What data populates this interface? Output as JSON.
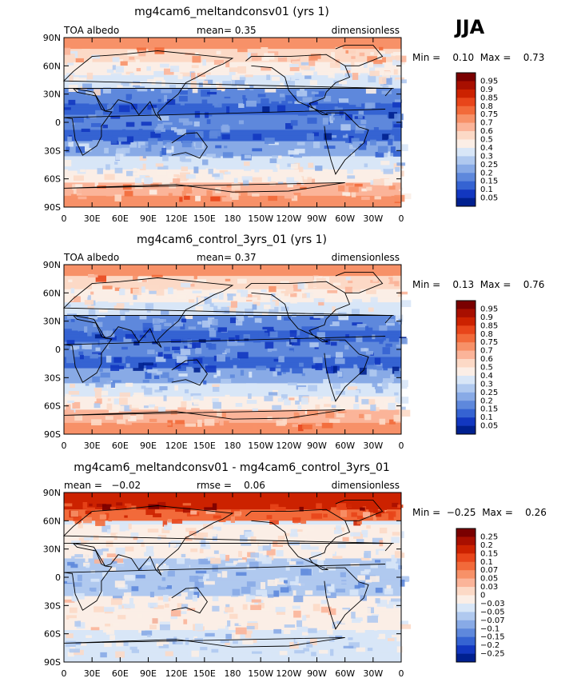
{
  "season": "JJA",
  "chart_data": [
    {
      "type": "heatmap",
      "title": "mg4cam6_meltandconsv01 (yrs 1)",
      "left_label": "TOA albedo",
      "center_label": "mean=    0.35",
      "units": "dimensionless",
      "min_max": "Min =    0.10  Max =    0.73",
      "min": 0.1,
      "max": 0.73,
      "mean": 0.35,
      "lat_ticks": [
        "90N",
        "60N",
        "30N",
        "0",
        "30S",
        "60S",
        "90S"
      ],
      "lon_ticks": [
        "0",
        "30E",
        "60E",
        "90E",
        "120E",
        "150E",
        "180",
        "150W",
        "120W",
        "90W",
        "60W",
        "30W",
        "0"
      ],
      "colorbar_labels": [
        "0.95",
        "0.9",
        "0.85",
        "0.8",
        "0.75",
        "0.7",
        "0.6",
        "0.5",
        "0.4",
        "0.3",
        "0.25",
        "0.2",
        "0.15",
        "0.1",
        "0.05"
      ],
      "colorbar_colors": [
        "#7a0000",
        "#a80f00",
        "#cc2200",
        "#e8451a",
        "#f26a3a",
        "#f79168",
        "#fbb499",
        "#fcd9c6",
        "#fbeee6",
        "#d8e6f7",
        "#b0c9ef",
        "#88aae6",
        "#5e88dc",
        "#3563d2",
        "#1237c0",
        "#00208f"
      ]
    },
    {
      "type": "heatmap",
      "title": "mg4cam6_control_3yrs_01 (yrs 1)",
      "left_label": "TOA albedo",
      "center_label": "mean=    0.37",
      "units": "dimensionless",
      "min_max": "Min =    0.13  Max =    0.76",
      "min": 0.13,
      "max": 0.76,
      "mean": 0.37,
      "lat_ticks": [
        "90N",
        "60N",
        "30N",
        "0",
        "30S",
        "60S",
        "90S"
      ],
      "lon_ticks": [
        "0",
        "30E",
        "60E",
        "90E",
        "120E",
        "150E",
        "180",
        "150W",
        "120W",
        "90W",
        "60W",
        "30W",
        "0"
      ],
      "colorbar_labels": [
        "0.95",
        "0.9",
        "0.85",
        "0.8",
        "0.75",
        "0.7",
        "0.6",
        "0.5",
        "0.4",
        "0.3",
        "0.25",
        "0.2",
        "0.15",
        "0.1",
        "0.05"
      ],
      "colorbar_colors": [
        "#7a0000",
        "#a80f00",
        "#cc2200",
        "#e8451a",
        "#f26a3a",
        "#f79168",
        "#fbb499",
        "#fcd9c6",
        "#fbeee6",
        "#d8e6f7",
        "#b0c9ef",
        "#88aae6",
        "#5e88dc",
        "#3563d2",
        "#1237c0",
        "#00208f"
      ]
    },
    {
      "type": "heatmap",
      "title": "mg4cam6_meltandconsv01 - mg4cam6_control_3yrs_01",
      "left_label": "mean =   −0.02",
      "center_label": "rmse =    0.06",
      "units": "dimensionless",
      "min_max": "Min =  −0.25  Max =    0.26",
      "min": -0.25,
      "max": 0.26,
      "mean": -0.02,
      "rmse": 0.06,
      "lat_ticks": [
        "90N",
        "60N",
        "30N",
        "0",
        "30S",
        "60S",
        "90S"
      ],
      "lon_ticks": [
        "0",
        "30E",
        "60E",
        "90E",
        "120E",
        "150E",
        "180",
        "150W",
        "120W",
        "90W",
        "60W",
        "30W",
        "0"
      ],
      "colorbar_labels": [
        "0.25",
        "0.2",
        "0.15",
        "0.1",
        "0.07",
        "0.05",
        "0.03",
        "0",
        "−0.03",
        "−0.05",
        "−0.07",
        "−0.1",
        "−0.15",
        "−0.2",
        "−0.25"
      ],
      "colorbar_colors": [
        "#7a0000",
        "#a80f00",
        "#cc2200",
        "#e8451a",
        "#f26a3a",
        "#f79168",
        "#fbb499",
        "#fcd9c6",
        "#fbeee6",
        "#d8e6f7",
        "#b0c9ef",
        "#88aae6",
        "#5e88dc",
        "#3563d2",
        "#1237c0",
        "#00208f"
      ]
    }
  ]
}
